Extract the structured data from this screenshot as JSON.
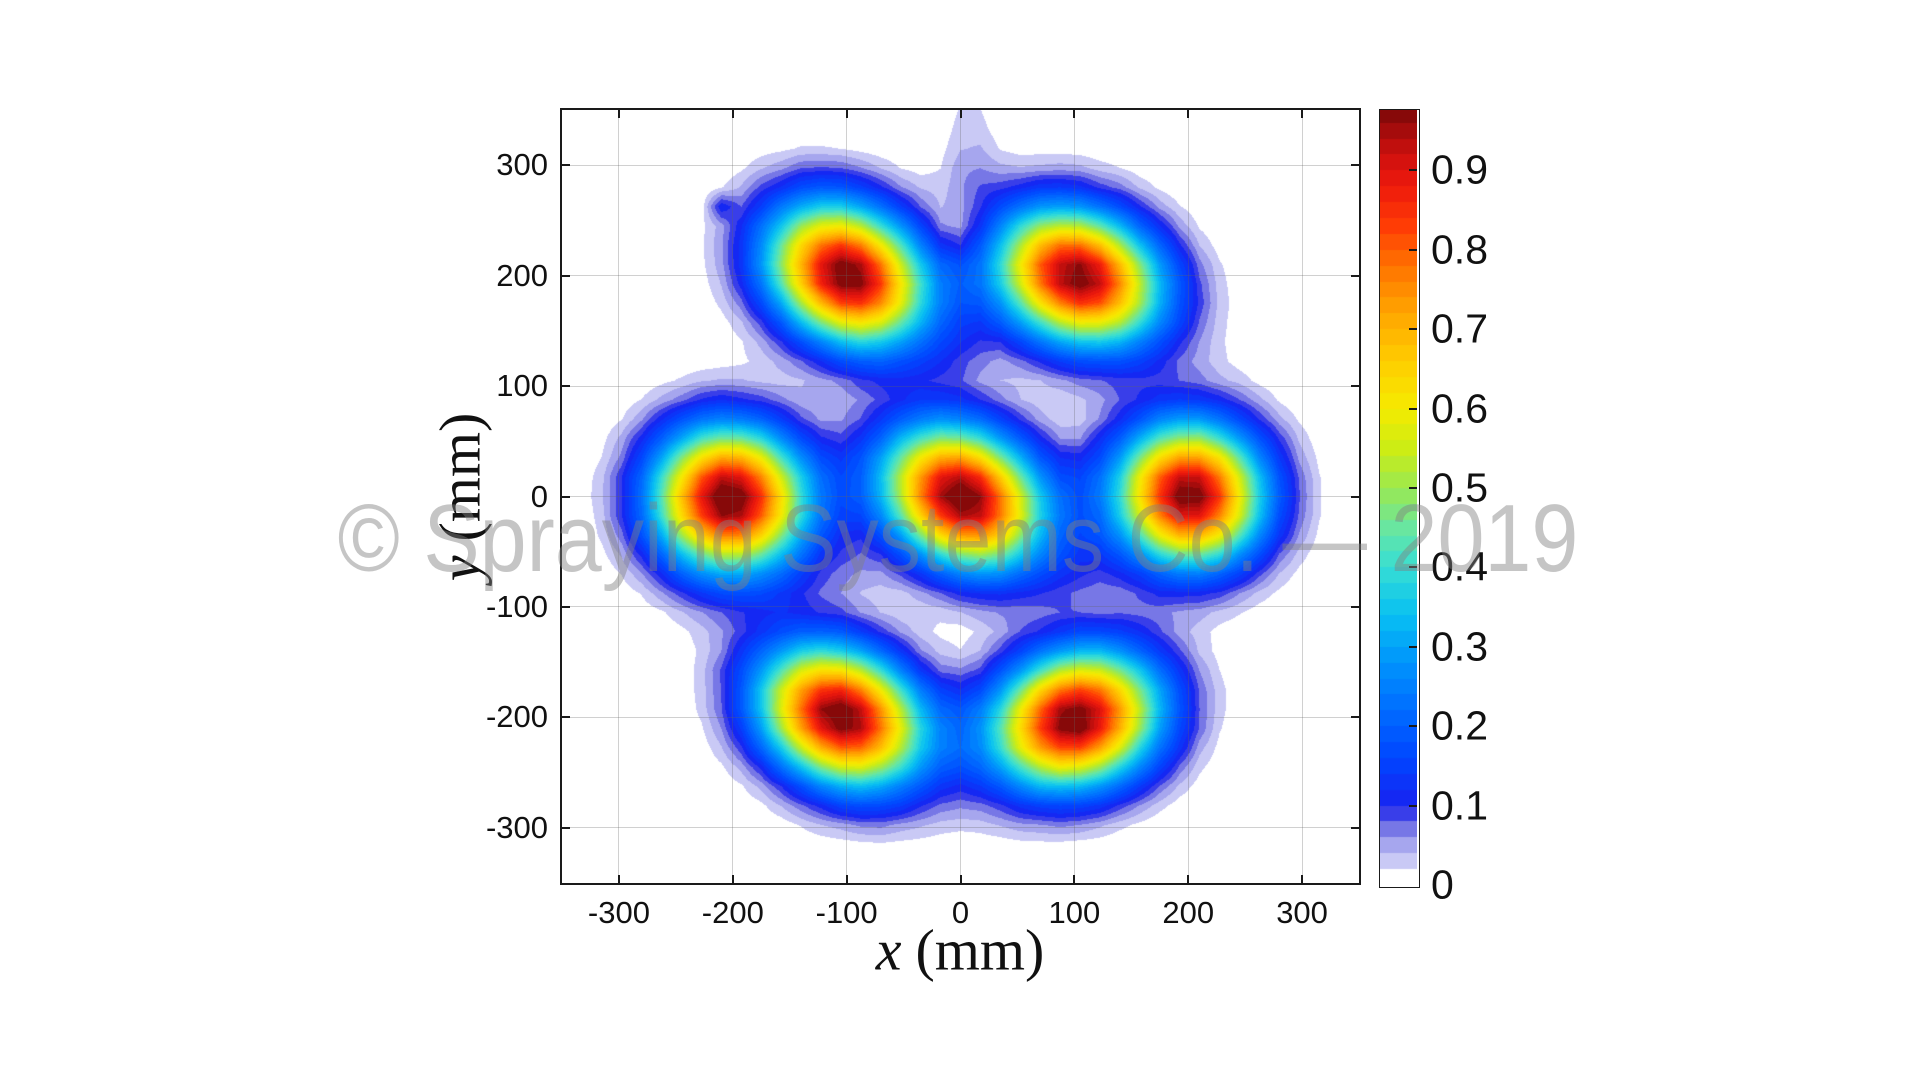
{
  "watermark": {
    "text": "© Spraying Systems Co. — 2019"
  },
  "chart_data": {
    "type": "filled_contour",
    "title": "",
    "xlabel": {
      "variable": "x",
      "unit": "(mm)"
    },
    "ylabel": {
      "variable": "y",
      "unit": "(mm)"
    },
    "x_range": [
      -350,
      350
    ],
    "y_range": [
      -350,
      350
    ],
    "grid": true,
    "x_ticks": [
      {
        "v": -300,
        "label": "-300"
      },
      {
        "v": -200,
        "label": "-200"
      },
      {
        "v": -100,
        "label": "-100"
      },
      {
        "v": 0,
        "label": "0"
      },
      {
        "v": 100,
        "label": "100"
      },
      {
        "v": 200,
        "label": "200"
      },
      {
        "v": 300,
        "label": "300"
      }
    ],
    "y_ticks": [
      {
        "v": 300,
        "label": "300"
      },
      {
        "v": 200,
        "label": "200"
      },
      {
        "v": 100,
        "label": "100"
      },
      {
        "v": 0,
        "label": "0"
      },
      {
        "v": -100,
        "label": "-100"
      },
      {
        "v": -200,
        "label": "-200"
      },
      {
        "v": -300,
        "label": "-300"
      }
    ],
    "colorbar": {
      "vmax": 0.976,
      "level_step": 0.02,
      "ticks": [
        {
          "v": 0,
          "label": "0"
        },
        {
          "v": 0.1,
          "label": "0.1"
        },
        {
          "v": 0.2,
          "label": "0.2"
        },
        {
          "v": 0.3,
          "label": "0.3"
        },
        {
          "v": 0.4,
          "label": "0.4"
        },
        {
          "v": 0.5,
          "label": "0.5"
        },
        {
          "v": 0.6,
          "label": "0.6"
        },
        {
          "v": 0.7,
          "label": "0.7"
        },
        {
          "v": 0.8,
          "label": "0.8"
        },
        {
          "v": 0.9,
          "label": "0.9"
        }
      ]
    },
    "colormap": [
      [
        0.02,
        218,
        218,
        248
      ],
      [
        0.04,
        184,
        184,
        242
      ],
      [
        0.06,
        148,
        148,
        234
      ],
      [
        0.08,
        90,
        90,
        226
      ],
      [
        0.1,
        24,
        34,
        240
      ],
      [
        0.16,
        0,
        70,
        255
      ],
      [
        0.22,
        0,
        108,
        255
      ],
      [
        0.28,
        0,
        148,
        252
      ],
      [
        0.34,
        8,
        192,
        242
      ],
      [
        0.4,
        55,
        222,
        212
      ],
      [
        0.45,
        105,
        230,
        160
      ],
      [
        0.5,
        155,
        233,
        80
      ],
      [
        0.55,
        205,
        237,
        20
      ],
      [
        0.6,
        245,
        235,
        0
      ],
      [
        0.66,
        255,
        205,
        0
      ],
      [
        0.72,
        255,
        165,
        0
      ],
      [
        0.78,
        255,
        115,
        0
      ],
      [
        0.83,
        255,
        60,
        5
      ],
      [
        0.88,
        238,
        25,
        12
      ],
      [
        0.92,
        205,
        16,
        14
      ],
      [
        0.95,
        165,
        12,
        12
      ],
      [
        0.976,
        122,
        8,
        8
      ]
    ],
    "peak_centers_mm": [
      [
        -100,
        200
      ],
      [
        100,
        200
      ],
      [
        -200,
        0
      ],
      [
        0,
        0
      ],
      [
        200,
        0
      ],
      [
        -100,
        -200
      ],
      [
        100,
        -200
      ]
    ],
    "peak_value": 0.97,
    "field": {
      "grid_step": 17.5,
      "offset": 0.012,
      "noise": {
        "hash": 0.016,
        "w1": 0.01,
        "w2": 0.008
      },
      "peaks": [
        {
          "x": -100,
          "y": 200,
          "amp": 1.03,
          "sx": 72,
          "sy": 56,
          "rot": -35
        },
        {
          "x": 103,
          "y": 199,
          "amp": 1.03,
          "sx": 73,
          "sy": 56,
          "rot": -25
        },
        {
          "x": -203,
          "y": -2,
          "amp": 1.03,
          "sx": 65,
          "sy": 62,
          "rot": -12
        },
        {
          "x": 1,
          "y": -1,
          "amp": 1.03,
          "sx": 72,
          "sy": 56,
          "rot": -35
        },
        {
          "x": 201,
          "y": 1,
          "amp": 1.03,
          "sx": 63,
          "sy": 61,
          "rot": -40
        },
        {
          "x": -105,
          "y": -199,
          "amp": 1.03,
          "sx": 73,
          "sy": 56,
          "rot": -28
        },
        {
          "x": 100,
          "y": -202,
          "amp": 1.03,
          "sx": 72,
          "sy": 57,
          "rot": 20
        }
      ],
      "bumps": [
        {
          "x": 8,
          "y": 305,
          "a": 0.05,
          "sx": 25,
          "sy": 75
        },
        {
          "x": 2,
          "y": 240,
          "a": -0.09,
          "sx": 30,
          "sy": 30
        },
        {
          "x": 0,
          "y": 133,
          "a": 0.035,
          "sx": 30,
          "sy": 30
        },
        {
          "x": -100,
          "y": -67,
          "a": 0.03,
          "sx": 28,
          "sy": 28
        },
        {
          "x": 100,
          "y": -67,
          "a": 0.03,
          "sx": 28,
          "sy": 28
        },
        {
          "x": -100,
          "y": 67,
          "a": -0.006,
          "sx": 18,
          "sy": 18
        },
        {
          "x": 100,
          "y": 67,
          "a": -0.006,
          "sx": 18,
          "sy": 18
        },
        {
          "x": 0,
          "y": -133,
          "a": -0.014,
          "sx": 22,
          "sy": 22
        },
        {
          "x": -209,
          "y": 261,
          "a": 0.085,
          "sx": 8,
          "sy": 8
        }
      ]
    }
  }
}
